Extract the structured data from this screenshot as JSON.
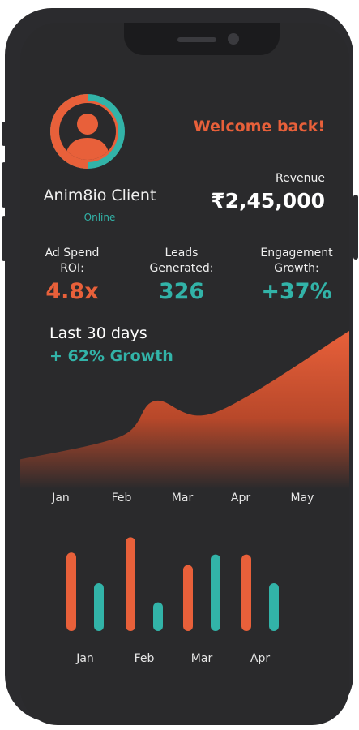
{
  "colors": {
    "accent": "#e8603a",
    "teal": "#32b3a8",
    "background": "#2a2a2c",
    "text": "#f0f0f0"
  },
  "profile": {
    "name": "Anim8io Client",
    "status": "Online",
    "avatar_icon": "user-avatar-icon"
  },
  "header": {
    "welcome": "Welcome back!",
    "revenue_label": "Revenue",
    "revenue_value": "₹2,45,000"
  },
  "kpis": [
    {
      "label_line1": "Ad Spend",
      "label_line2": "ROI:",
      "value": "4.8x",
      "color": "#e8603a"
    },
    {
      "label_line1": "Leads",
      "label_line2": "Generated:",
      "value": "326",
      "color": "#32b3a8"
    },
    {
      "label_line1": "Engagement",
      "label_line2": "Growth:",
      "value": "+37%",
      "color": "#32b3a8"
    }
  ],
  "trend": {
    "period": "Last 30 days",
    "growth": "+ 62% Growth"
  },
  "chart_data": [
    {
      "type": "area",
      "categories": [
        "Jan",
        "Feb",
        "Mar",
        "Apr",
        "May"
      ],
      "values": [
        12,
        28,
        52,
        44,
        100
      ],
      "ylim": [
        0,
        100
      ],
      "grid": false,
      "color": "#e8603a"
    },
    {
      "type": "bar",
      "categories": [
        "Jan",
        "Feb",
        "Mar",
        "Apr"
      ],
      "series": [
        {
          "values": [
            82,
            98,
            69,
            80
          ],
          "color": "#e8603a"
        },
        {
          "values": [
            50,
            30,
            80,
            50
          ],
          "color": "#32b3a8"
        }
      ],
      "ylim": [
        0,
        100
      ],
      "grid": false
    }
  ]
}
